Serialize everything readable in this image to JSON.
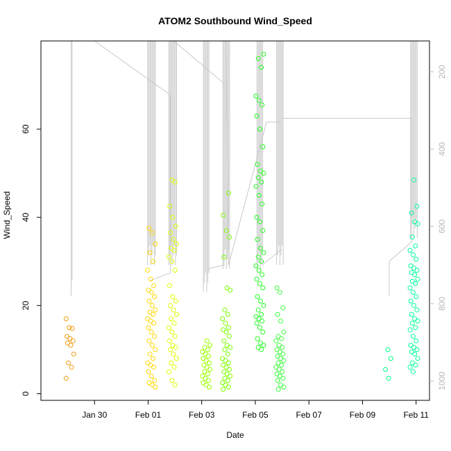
{
  "chart_data": {
    "type": "scatter",
    "title": "ATOM2 Southbound Wind_Speed",
    "xlabel": "Date",
    "ylabel": "Wind_Speed",
    "xlim": [
      "2013-01-28T00:00",
      "2013-02-11T12:00"
    ],
    "ylim": [
      -1.5,
      80
    ],
    "x_ticks": [
      {
        "label": "Jan 30",
        "date": "2013-01-30"
      },
      {
        "label": "Feb 01",
        "date": "2013-02-01"
      },
      {
        "label": "Feb 03",
        "date": "2013-02-03"
      },
      {
        "label": "Feb 05",
        "date": "2013-02-05"
      },
      {
        "label": "Feb 07",
        "date": "2013-02-07"
      },
      {
        "label": "Feb 09",
        "date": "2013-02-09"
      },
      {
        "label": "Feb 11",
        "date": "2013-02-11"
      }
    ],
    "y_ticks": [
      0,
      20,
      40,
      60
    ],
    "secondary_axis": {
      "side": "right",
      "ticks": [
        200,
        400,
        600,
        800,
        1000
      ],
      "lim": [
        120,
        1050
      ],
      "color": "#b8b8b8"
    },
    "colors": {
      "orange": "#f39c12",
      "yellow": "#ffd700",
      "lime": "#9cff00",
      "green": "#22ff22",
      "mint": "#00ff99",
      "line": "#c8c8c8"
    },
    "series": [
      {
        "color": "#f39c12",
        "center": "2013-01-29T02:00",
        "y": [
          17,
          15,
          14.8,
          13,
          12.5,
          12,
          11.5,
          11,
          9,
          7,
          6,
          3.5
        ]
      },
      {
        "color": "#ffd700",
        "center": "2013-02-01T03:00",
        "y": [
          37.5,
          36.5,
          34,
          32,
          30,
          28,
          26,
          24.5,
          23.5,
          23,
          22,
          21,
          20,
          19,
          18.5,
          18,
          17,
          16.5,
          16,
          15,
          14,
          13,
          12,
          11,
          10,
          9,
          8,
          7,
          6.5,
          6,
          5,
          4,
          3,
          2.5,
          2,
          1.5
        ]
      },
      {
        "color": "#e3ff00",
        "center": "2013-02-01T22:00",
        "y": [
          48.5,
          48,
          42.5,
          40,
          38,
          36.5,
          35,
          34,
          33,
          32.5,
          31,
          30,
          28,
          24.5,
          22,
          21,
          20,
          19,
          18,
          17,
          16,
          15,
          14,
          13,
          12,
          11,
          10.5,
          10,
          9,
          8,
          7,
          6,
          5,
          3,
          2
        ]
      },
      {
        "color": "#9cff00",
        "center": "2013-02-03T04:00",
        "y": [
          12,
          11,
          10.5,
          10,
          9.5,
          9,
          8.5,
          8,
          7.5,
          7,
          6.5,
          6,
          5.5,
          5,
          4.5,
          4,
          3.5,
          3,
          2.5,
          2,
          1.5
        ]
      },
      {
        "color": "#7cff00",
        "center": "2013-02-03T22:00",
        "y": [
          45.5,
          40.5,
          37,
          35.5,
          31,
          24,
          23.5,
          19,
          18,
          17,
          16,
          15,
          14.5,
          14,
          13,
          12,
          11,
          10.5,
          10,
          9,
          8,
          7.5,
          7,
          6.5,
          6,
          5.5,
          5,
          4.5,
          4,
          3.5,
          3,
          2.5,
          2,
          1.5,
          1
        ]
      },
      {
        "color": "#22ff22",
        "center": "2013-02-05T04:00",
        "y": [
          77,
          76,
          74,
          67.5,
          66.5,
          65.5,
          63,
          60,
          56,
          52,
          50.5,
          50,
          49,
          48,
          47,
          45,
          43,
          40,
          39,
          37,
          35,
          33,
          32,
          31,
          30,
          29,
          28,
          27,
          26,
          25,
          24,
          22,
          21,
          20,
          19,
          18,
          17.5,
          17,
          16.5,
          16,
          15,
          14,
          12.5,
          11.5,
          11,
          10.5,
          10
        ]
      },
      {
        "color": "#3cff3c",
        "center": "2013-02-05T22:00",
        "y": [
          24,
          23,
          19.5,
          18,
          16.5,
          14,
          13,
          12.5,
          12,
          11,
          10.5,
          10,
          9.5,
          9,
          8.5,
          8,
          7.5,
          7,
          6.5,
          6,
          5.5,
          5,
          4.5,
          4,
          3.5,
          3,
          2,
          1.5,
          1
        ]
      },
      {
        "color": "#00ff88",
        "center": "2013-02-10T00:00",
        "y": [
          10,
          8,
          5.5,
          3.5
        ]
      },
      {
        "color": "#00ff99",
        "center": "2013-02-10T22:00",
        "y": [
          48.5,
          42.5,
          41,
          39,
          38.5,
          35.5,
          33.5,
          32.5,
          31.5,
          30.5,
          29,
          28.5,
          28,
          27.5,
          27,
          26,
          25.5,
          25,
          24,
          23,
          22,
          21,
          20,
          19,
          18,
          17,
          16.5,
          16,
          15,
          14.5,
          13,
          12,
          11,
          10.5,
          10,
          9.5,
          9,
          8,
          7,
          6.5,
          6,
          5
        ]
      }
    ],
    "secondary_lines": [
      {
        "spikes": [
          {
            "t": "2013-01-29T03:00",
            "bottom": 780
          }
        ]
      },
      {
        "path": [
          [
            "2013-01-30T00:00",
            120
          ],
          [
            "2013-02-01T20:00",
            260
          ],
          [
            "2013-02-01T20:00",
            720
          ],
          [
            "2013-02-01T02:00",
            740
          ]
        ]
      },
      {
        "path": [
          [
            "2013-02-01T23:00",
            120
          ],
          [
            "2013-02-03T20:00",
            230
          ],
          [
            "2013-02-03T20:00",
            700
          ],
          [
            "2013-02-03T05:00",
            710
          ]
        ]
      },
      {
        "path": [
          [
            "2013-02-03T22:00",
            120
          ],
          [
            "2013-02-04T00:00",
            700
          ],
          [
            "2013-02-05T10:00",
            330
          ],
          [
            "2013-02-05T23:00",
            330
          ],
          [
            "2013-02-05T23:00",
            660
          ],
          [
            "2013-02-05T06:00",
            700
          ]
        ]
      },
      {
        "path": [
          [
            "2013-02-06T00:00",
            320
          ],
          [
            "2013-02-10T20:00",
            320
          ],
          [
            "2013-02-10T20:00",
            640
          ],
          [
            "2013-02-10T00:00",
            690
          ],
          [
            "2013-02-10T00:00",
            780
          ]
        ]
      }
    ],
    "spike_groups": [
      {
        "center": "2013-02-01T03:00",
        "count": 8,
        "top": 120,
        "bottom": 700
      },
      {
        "center": "2013-02-01T22:00",
        "count": 8,
        "top": 120,
        "bottom": 700
      },
      {
        "center": "2013-02-03T04:00",
        "count": 6,
        "top": 120,
        "bottom": 770
      },
      {
        "center": "2013-02-03T22:00",
        "count": 7,
        "top": 120,
        "bottom": 710
      },
      {
        "center": "2013-02-05T04:00",
        "count": 6,
        "top": 120,
        "bottom": 720
      },
      {
        "center": "2013-02-05T22:00",
        "count": 7,
        "top": 120,
        "bottom": 700
      },
      {
        "center": "2013-02-10T22:00",
        "count": 7,
        "top": 120,
        "bottom": 630
      }
    ]
  }
}
